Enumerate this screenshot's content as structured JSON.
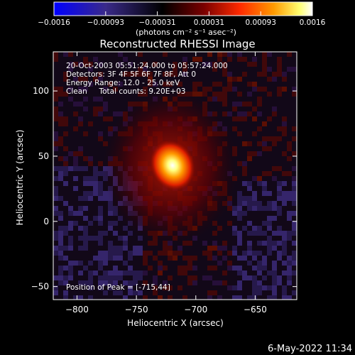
{
  "chart_data": {
    "type": "heatmap",
    "title": "Reconstructed RHESSI Image",
    "xlabel": "Heliocentric X (arcsec)",
    "ylabel": "Heliocentric Y (arcsec)",
    "xlim": [
      -820,
      -615
    ],
    "ylim": [
      -60,
      130
    ],
    "x_ticks": [
      -800,
      -750,
      -700,
      -650
    ],
    "y_ticks": [
      -50,
      0,
      50,
      100
    ],
    "x_tick_labels": [
      "−800",
      "−750",
      "−700",
      "−650"
    ],
    "y_tick_labels": [
      "−50",
      "0",
      "50",
      "100"
    ],
    "colorbar": {
      "range": [
        -0.0016,
        0.0016
      ],
      "tick_labels": [
        "−0.0016",
        "−0.00093",
        "−0.00031",
        "0.00031",
        "0.00093",
        "0.0016"
      ],
      "unit_label": "(photons cm⁻² s⁻¹ asec⁻²)",
      "colors": [
        "#0000ff",
        "#3a2a8a",
        "#000000",
        "#7a0000",
        "#ff2a00",
        "#ff9a00",
        "#ffff70",
        "#ffffff"
      ]
    },
    "annotations": [
      "20-Oct-2003 05:51:24.000 to 05:57:24.000",
      "Detectors: 3F 4F 5F 6F 7F 8F, Att 0",
      "Energy Range: 12.0 - 25.0 keV",
      "Clean     Total counts: 9.20E+03"
    ],
    "peak_label": "Position of Peak = [-715,44]",
    "peak": {
      "x": -715,
      "y": 44
    }
  },
  "footer": {
    "timestamp": "6-May-2022 11:34"
  }
}
